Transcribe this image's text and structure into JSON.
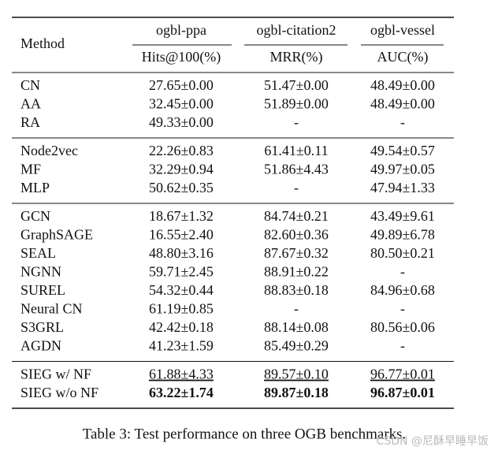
{
  "header": {
    "method": "Method",
    "datasets": [
      {
        "name": "ogbl-ppa",
        "metric": "Hits@100(%)"
      },
      {
        "name": "ogbl-citation2",
        "metric": "MRR(%)"
      },
      {
        "name": "ogbl-vessel",
        "metric": "AUC(%)"
      }
    ]
  },
  "groups": [
    {
      "rows": [
        {
          "method": "CN",
          "values": [
            "27.65±0.00",
            "51.47±0.00",
            "48.49±0.00"
          ]
        },
        {
          "method": "AA",
          "values": [
            "32.45±0.00",
            "51.89±0.00",
            "48.49±0.00"
          ]
        },
        {
          "method": "RA",
          "values": [
            "49.33±0.00",
            "-",
            "-"
          ]
        }
      ]
    },
    {
      "rows": [
        {
          "method": "Node2vec",
          "values": [
            "22.26±0.83",
            "61.41±0.11",
            "49.54±0.57"
          ]
        },
        {
          "method": "MF",
          "values": [
            "32.29±0.94",
            "51.86±4.43",
            "49.97±0.05"
          ]
        },
        {
          "method": "MLP",
          "values": [
            "50.62±0.35",
            "-",
            "47.94±1.33"
          ]
        }
      ]
    },
    {
      "rows": [
        {
          "method": "GCN",
          "values": [
            "18.67±1.32",
            "84.74±0.21",
            "43.49±9.61"
          ]
        },
        {
          "method": "GraphSAGE",
          "values": [
            "16.55±2.40",
            "82.60±0.36",
            "49.89±6.78"
          ]
        },
        {
          "method": "SEAL",
          "values": [
            "48.80±3.16",
            "87.67±0.32",
            "80.50±0.21"
          ]
        },
        {
          "method": "NGNN",
          "values": [
            "59.71±2.45",
            "88.91±0.22",
            "-"
          ]
        },
        {
          "method": "SUREL",
          "values": [
            "54.32±0.44",
            "88.83±0.18",
            "84.96±0.68"
          ]
        },
        {
          "method": "Neural CN",
          "values": [
            "61.19±0.85",
            "-",
            "-"
          ]
        },
        {
          "method": "S3GRL",
          "values": [
            "42.42±0.18",
            "88.14±0.08",
            "80.56±0.06"
          ]
        },
        {
          "method": "AGDN",
          "values": [
            "41.23±1.59",
            "85.49±0.29",
            "-"
          ]
        }
      ]
    },
    {
      "rows": [
        {
          "method": "SIEG w/ NF",
          "values": [
            "61.88±4.33",
            "89.57±0.10",
            "96.77±0.01"
          ],
          "emphasis": "underline"
        },
        {
          "method": "SIEG w/o NF",
          "values": [
            "63.22±1.74",
            "89.87±0.18",
            "96.87±0.01"
          ],
          "emphasis": "bold"
        }
      ]
    }
  ],
  "caption": "Table 3: Test performance on three OGB benchmarks.",
  "watermark": "CSDN @尼酥早睡早饭"
}
